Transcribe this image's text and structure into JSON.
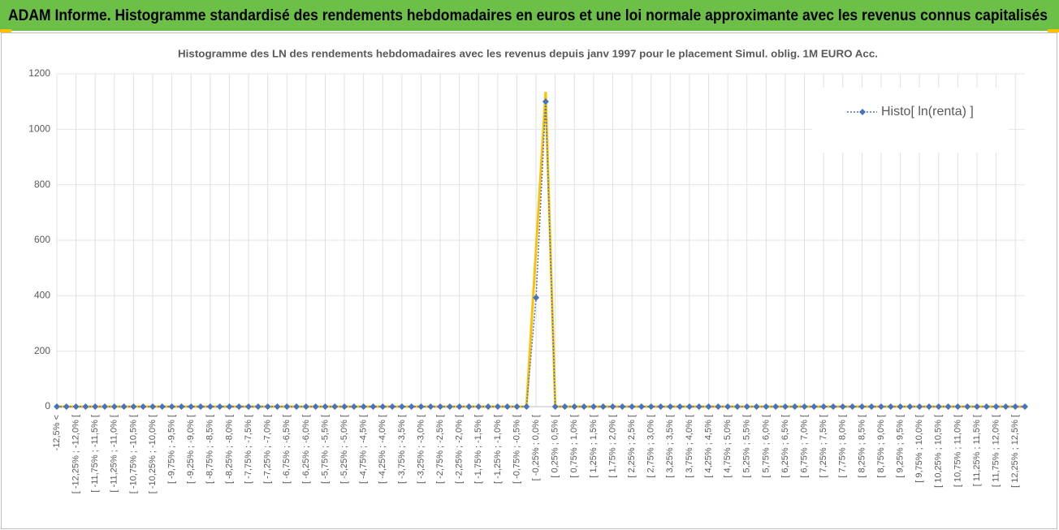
{
  "header": {
    "title": "ADAM Informe. Histogramme standardisé des rendements hebdomadaires en euros et une loi normale approximante avec les revenus connus capitalisés"
  },
  "chart_data": {
    "type": "line",
    "title": "Histogramme des LN des rendements hebdomadaires avec les revenus depuis janv 1997 pour le placement Simul. oblig. 1M EURO Acc.",
    "categories": [
      "-12,5% <",
      null,
      "[ -12,25% ; -12,0% [",
      null,
      "[ -11,75% ; -11,5% [",
      null,
      "[ -11,25% ; -11,0% [",
      null,
      "[ -10,75% ; -10,5% [",
      null,
      "[ -10,25% ; -10,0% [",
      null,
      "[ -9,75% ; -9,5% [",
      null,
      "[ -9,25% ; -9,0% [",
      null,
      "[ -8,75% ; -8,5% [",
      null,
      "[ -8,25% ; -8,0% [",
      null,
      "[ -7,75% ; -7,5% [",
      null,
      "[ -7,25% ; -7,0% [",
      null,
      "[ -6,75% ; -6,5% [",
      null,
      "[ -6,25% ; -6,0% [",
      null,
      "[ -5,75% ; -5,5% [",
      null,
      "[ -5,25% ; -5,0% [",
      null,
      "[ -4,75% ; -4,5% [",
      null,
      "[ -4,25% ; -4,0% [",
      null,
      "[ -3,75% ; -3,5% [",
      null,
      "[ -3,25% ; -3,0% [",
      null,
      "[ -2,75% ; -2,5% [",
      null,
      "[ -2,25% ; -2,0% [",
      null,
      "[ -1,75% ; -1,5% [",
      null,
      "[ -1,25% ; -1,0% [",
      null,
      "[ -0,75% ; -0,5% [",
      null,
      "[ -0,25% ; 0,0% [",
      null,
      "[ 0,25% ; 0,5% [",
      null,
      "[ 0,75% ; 1,0% [",
      null,
      "[ 1,25% ; 1,5% [",
      null,
      "[ 1,75% ; 2,0% [",
      null,
      "[ 2,25% ; 2,5% [",
      null,
      "[ 2,75% ; 3,0% [",
      null,
      "[ 3,25% ; 3,5% [",
      null,
      "[ 3,75% ; 4,0% [",
      null,
      "[ 4,25% ; 4,5% [",
      null,
      "[ 4,75% ; 5,0% [",
      null,
      "[ 5,25% ; 5,5% [",
      null,
      "[ 5,75% ; 6,0% [",
      null,
      "[ 6,25% ; 6,5% [",
      null,
      "[ 6,75% ; 7,0% [",
      null,
      "[ 7,25% ; 7,5% [",
      null,
      "[ 7,75% ; 8,0% [",
      null,
      "[ 8,25% ; 8,5% [",
      null,
      "[ 8,75% ; 9,0% [",
      null,
      "[ 9,25% ; 9,5% [",
      null,
      "[ 9,75% ; 10,0% [",
      null,
      "[ 10,25% ; 10,5% [",
      null,
      "[ 10,75% ; 11,0% [",
      null,
      "[ 11,25% ; 11,5% [",
      null,
      "[ 11,75% ; 12,0% [",
      null,
      "[ 12,25% ; 12,5% [",
      null
    ],
    "series": [
      {
        "name": "Histo[ ln(renta) ]",
        "color": "#4472c4",
        "marker": "diamond",
        "values": [
          0,
          0,
          0,
          0,
          0,
          0,
          0,
          0,
          0,
          0,
          0,
          0,
          0,
          0,
          0,
          0,
          0,
          0,
          0,
          0,
          0,
          0,
          0,
          0,
          0,
          0,
          0,
          0,
          0,
          0,
          0,
          0,
          0,
          0,
          0,
          0,
          0,
          0,
          0,
          0,
          0,
          0,
          0,
          0,
          0,
          0,
          0,
          0,
          0,
          0,
          393,
          1100,
          0,
          0,
          0,
          0,
          0,
          0,
          0,
          0,
          0,
          0,
          0,
          0,
          0,
          0,
          0,
          0,
          0,
          0,
          0,
          0,
          0,
          0,
          0,
          0,
          0,
          0,
          0,
          0,
          0,
          0,
          0,
          0,
          0,
          0,
          0,
          0,
          0,
          0,
          0,
          0,
          0,
          0,
          0,
          0,
          0,
          0,
          0,
          0,
          0,
          0
        ]
      },
      {
        "color": "#ffc000",
        "values": [
          0,
          0,
          0,
          0,
          0,
          0,
          0,
          0,
          0,
          0,
          0,
          0,
          0,
          0,
          0,
          0,
          0,
          0,
          0,
          0,
          0,
          0,
          0,
          0,
          0,
          0,
          0,
          0,
          0,
          0,
          0,
          0,
          0,
          0,
          0,
          0,
          0,
          0,
          0,
          0,
          0,
          0,
          0,
          0,
          0,
          0,
          0,
          0,
          0,
          0,
          570,
          1135,
          0,
          0,
          0,
          0,
          0,
          0,
          0,
          0,
          0,
          0,
          0,
          0,
          0,
          0,
          0,
          0,
          0,
          0,
          0,
          0,
          0,
          0,
          0,
          0,
          0,
          0,
          0,
          0,
          0,
          0,
          0,
          0,
          0,
          0,
          0,
          0,
          0,
          0,
          0,
          0,
          0,
          0,
          0,
          0,
          0,
          0,
          0,
          0,
          0,
          0
        ]
      }
    ],
    "ylim": [
      0,
      1200
    ],
    "yticks": [
      0,
      200,
      400,
      600,
      800,
      1000,
      1200
    ],
    "grid": true,
    "legend": "upper right"
  }
}
